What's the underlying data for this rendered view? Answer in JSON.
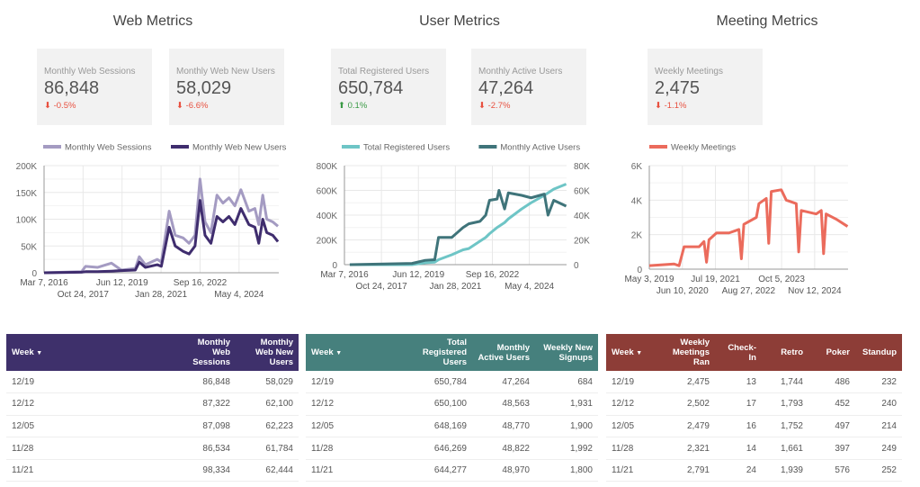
{
  "sections": [
    {
      "title": "Web Metrics",
      "cards": [
        {
          "label": "Monthly Web Sessions",
          "value": "86,848",
          "change": "-0.5%",
          "dir": "down"
        },
        {
          "label": "Monthly Web New Users",
          "value": "58,029",
          "change": "-6.6%",
          "dir": "down"
        }
      ]
    },
    {
      "title": "User Metrics",
      "cards": [
        {
          "label": "Total Registered Users",
          "value": "650,784",
          "change": "0.1%",
          "dir": "up"
        },
        {
          "label": "Monthly Active Users",
          "value": "47,264",
          "change": "-2.7%",
          "dir": "down"
        }
      ]
    },
    {
      "title": "Meeting Metrics",
      "cards": [
        {
          "label": "Weekly Meetings",
          "value": "2,475",
          "change": "-1.1%",
          "dir": "down"
        }
      ]
    }
  ],
  "chart_data": [
    {
      "type": "line",
      "xlim": [
        "Mar 7, 2016",
        "Jan 1, 2026"
      ],
      "ylim": [
        0,
        200000
      ],
      "yticks": [
        "0",
        "50K",
        "100K",
        "150K",
        "200K"
      ],
      "xticks": [
        "Mar 7, 2016",
        "Oct 24, 2017",
        "Jun 12, 2019",
        "Jan 28, 2021",
        "Sep 16, 2022",
        "May 4, 2024"
      ],
      "grid": true,
      "legend": "top",
      "x": [
        "2016-03-07",
        "2017-10-01",
        "2017-12-01",
        "2018-06-01",
        "2019-01-01",
        "2019-06-01",
        "2020-01-01",
        "2020-03-01",
        "2020-06-01",
        "2020-12-01",
        "2021-02-01",
        "2021-06-01",
        "2021-09-01",
        "2022-01-01",
        "2022-04-01",
        "2022-07-01",
        "2022-09-15",
        "2022-12-01",
        "2023-03-01",
        "2023-06-01",
        "2023-09-01",
        "2023-12-01",
        "2024-03-01",
        "2024-06-01",
        "2024-10-01",
        "2025-01-01",
        "2025-03-01",
        "2025-05-01",
        "2025-07-01",
        "2025-10-01",
        "2025-12-19"
      ],
      "series": [
        {
          "name": "Monthly Web Sessions",
          "color": "#a49bc2",
          "values": [
            0,
            2000,
            12000,
            10000,
            18000,
            5000,
            8000,
            30000,
            15000,
            25000,
            20000,
            115000,
            70000,
            65000,
            55000,
            70000,
            175000,
            95000,
            75000,
            145000,
            130000,
            140000,
            125000,
            155000,
            115000,
            120000,
            90000,
            145000,
            100000,
            95000,
            86848
          ]
        },
        {
          "name": "Monthly Web New Users",
          "color": "#3f2d6e",
          "values": [
            0,
            1000,
            2000,
            2000,
            3000,
            4000,
            5000,
            20000,
            10000,
            15000,
            12000,
            85000,
            50000,
            40000,
            35000,
            50000,
            135000,
            70000,
            55000,
            105000,
            95000,
            105000,
            90000,
            120000,
            90000,
            85000,
            55000,
            100000,
            75000,
            70000,
            58029
          ]
        }
      ]
    },
    {
      "type": "line",
      "xlim": [
        "Mar 7, 2016",
        "Dec 25, 2025"
      ],
      "ylim": [
        0,
        800000
      ],
      "ylim_right": [
        0,
        80000
      ],
      "yticks": [
        "0",
        "200K",
        "400K",
        "600K",
        "800K"
      ],
      "yticks_right": [
        "0",
        "20K",
        "40K",
        "60K",
        "80K"
      ],
      "xticks": [
        "Mar 7, 2016",
        "Oct 24, 2017",
        "Jun 12, 2019",
        "Jan 28, 2021",
        "Sep 16, 2022",
        "May 4, 2024"
      ],
      "grid": true,
      "legend": "top",
      "x": [
        "2016-06-01",
        "2019-03-01",
        "2019-10-01",
        "2020-03-01",
        "2020-05-01",
        "2020-12-01",
        "2021-06-01",
        "2021-09-01",
        "2022-03-01",
        "2022-06-01",
        "2022-08-01",
        "2022-12-01",
        "2023-01-01",
        "2023-04-01",
        "2023-06-01",
        "2024-01-01",
        "2024-06-01",
        "2025-01-01",
        "2025-03-01",
        "2025-06-01",
        "2025-12-19"
      ],
      "series": [
        {
          "name": "Total Registered Users",
          "color": "#6ec5c6",
          "axis": "left",
          "values": [
            0,
            0,
            15000,
            20000,
            40000,
            80000,
            120000,
            130000,
            190000,
            220000,
            250000,
            300000,
            310000,
            340000,
            370000,
            450000,
            500000,
            560000,
            580000,
            610000,
            650784
          ]
        },
        {
          "name": "Monthly Active Users",
          "color": "#3f747a",
          "axis": "right",
          "values": [
            0,
            1000,
            3500,
            4000,
            22000,
            22000,
            30000,
            33000,
            35000,
            40000,
            52000,
            53000,
            60000,
            45000,
            58000,
            56000,
            54000,
            57000,
            40000,
            52000,
            47264
          ]
        }
      ]
    },
    {
      "type": "line",
      "xlim": [
        "May 3, 2019",
        "Dec 25, 2025"
      ],
      "ylim": [
        0,
        6000
      ],
      "yticks": [
        "0",
        "2K",
        "4K",
        "6K"
      ],
      "xticks": [
        "May 3, 2019",
        "Jun 10, 2020",
        "Jul 19, 2021",
        "Aug 27, 2022",
        "Oct 5, 2023",
        "Nov 12, 2024"
      ],
      "grid": true,
      "legend": "top",
      "x": [
        "2019-05-03",
        "2020-03-01",
        "2020-05-01",
        "2020-07-01",
        "2021-01-01",
        "2021-03-01",
        "2021-04-01",
        "2021-05-01",
        "2021-08-01",
        "2022-01-01",
        "2022-05-01",
        "2022-06-01",
        "2022-07-01",
        "2022-12-01",
        "2023-01-01",
        "2023-04-01",
        "2023-05-01",
        "2023-06-01",
        "2023-10-01",
        "2023-12-01",
        "2024-04-01",
        "2024-05-01",
        "2024-06-01",
        "2024-12-01",
        "2025-02-01",
        "2025-03-01",
        "2025-04-01",
        "2025-08-01",
        "2025-12-19"
      ],
      "series": [
        {
          "name": "Weekly Meetings",
          "color": "#eb6b5c",
          "values": [
            200,
            300,
            200,
            1300,
            1300,
            1600,
            400,
            1700,
            2100,
            2100,
            2300,
            600,
            2600,
            3000,
            3800,
            4100,
            1500,
            4500,
            4600,
            4000,
            3800,
            1000,
            3400,
            3200,
            3400,
            900,
            3200,
            2900,
            2475
          ]
        }
      ]
    }
  ],
  "tables": [
    {
      "color": "#3e306b",
      "headers": [
        "Week",
        "Monthly Web Sessions",
        "Monthly Web New Users"
      ],
      "rows": [
        [
          "12/19",
          "86,848",
          "58,029"
        ],
        [
          "12/12",
          "87,322",
          "62,100"
        ],
        [
          "12/05",
          "87,098",
          "62,223"
        ],
        [
          "11/28",
          "86,534",
          "61,784"
        ],
        [
          "11/21",
          "98,334",
          "62,444"
        ]
      ]
    },
    {
      "color": "#46807d",
      "headers": [
        "Week",
        "Total Registered Users",
        "Monthly Active Users",
        "Weekly New Signups"
      ],
      "rows": [
        [
          "12/19",
          "650,784",
          "47,264",
          "684"
        ],
        [
          "12/12",
          "650,100",
          "48,563",
          "1,931"
        ],
        [
          "12/05",
          "648,169",
          "48,770",
          "1,900"
        ],
        [
          "11/28",
          "646,269",
          "48,822",
          "1,992"
        ],
        [
          "11/21",
          "644,277",
          "48,970",
          "1,800"
        ]
      ]
    },
    {
      "color": "#8d3d37",
      "headers": [
        "Week",
        "Weekly Meetings Ran",
        "Check-In",
        "Retro",
        "Poker",
        "Standup"
      ],
      "rows": [
        [
          "12/19",
          "2,475",
          "13",
          "1,744",
          "486",
          "232"
        ],
        [
          "12/12",
          "2,502",
          "17",
          "1,793",
          "452",
          "240"
        ],
        [
          "12/05",
          "2,479",
          "16",
          "1,752",
          "497",
          "214"
        ],
        [
          "11/28",
          "2,321",
          "14",
          "1,661",
          "397",
          "249"
        ],
        [
          "11/21",
          "2,791",
          "24",
          "1,939",
          "576",
          "252"
        ]
      ]
    }
  ],
  "icons": {
    "sort": "caret-down-icon",
    "down": "arrow-down-icon",
    "up": "arrow-up-icon"
  }
}
